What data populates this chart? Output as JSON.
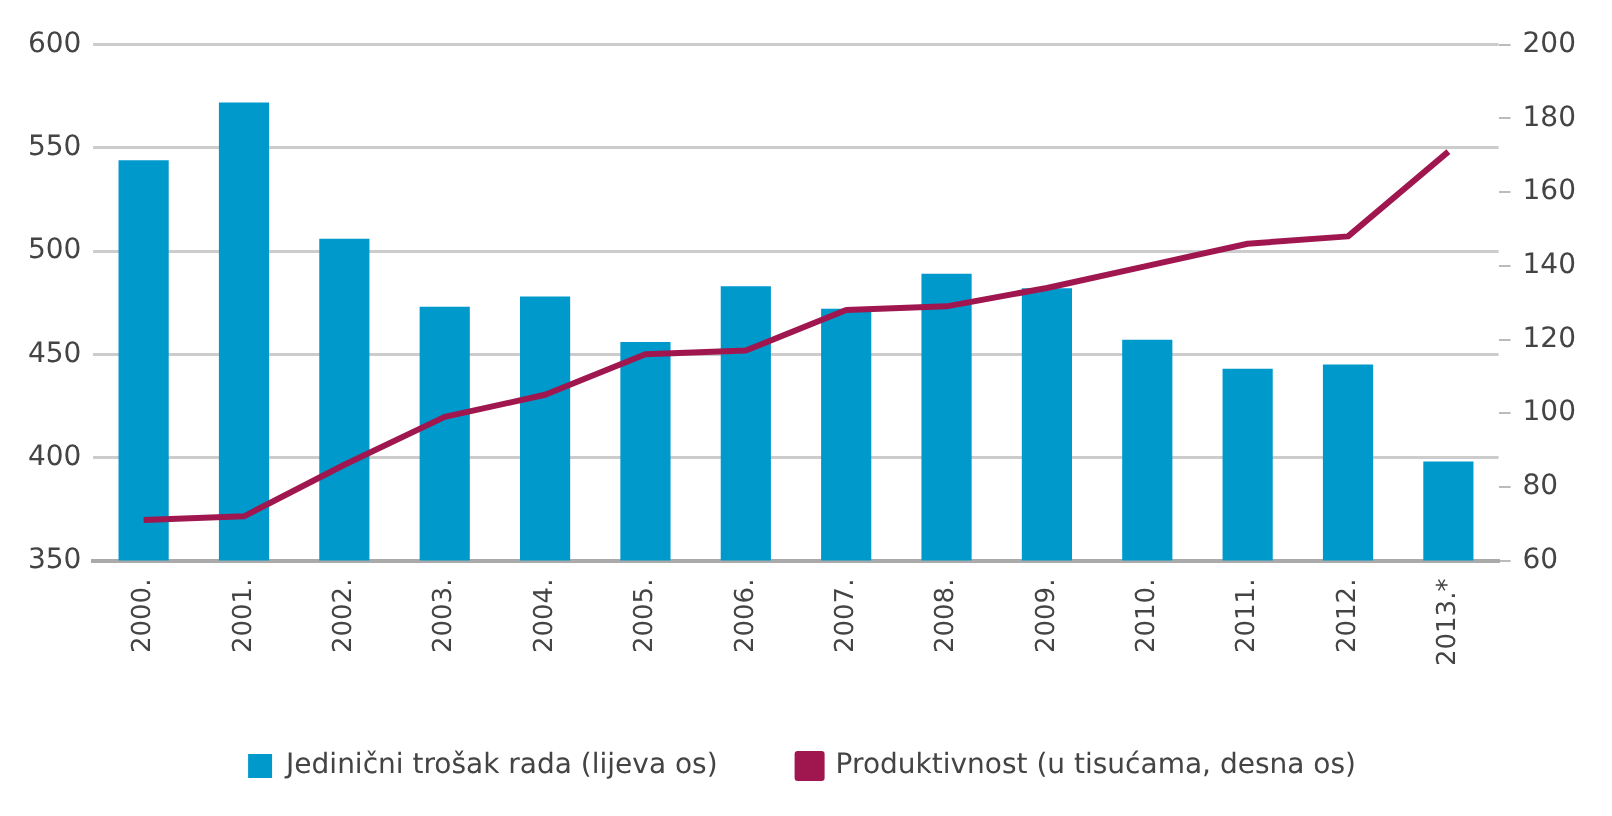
{
  "chart_data": {
    "type": "bar",
    "categories": [
      "2000.",
      "2001.",
      "2002.",
      "2003.",
      "2004.",
      "2005.",
      "2006.",
      "2007.",
      "2008.",
      "2009.",
      "2010.",
      "2011.",
      "2012.",
      "2013.*"
    ],
    "series": [
      {
        "name": "Jedinični trošak rada (lijeva os)",
        "color": "#0099cc",
        "values": [
          544,
          572,
          506,
          473,
          478,
          456,
          483,
          472,
          489,
          482,
          457,
          443,
          445,
          398
        ]
      },
      {
        "name": "Produktivnost (u tisućama, desna os)",
        "type": "line",
        "axis": "y2",
        "color": "#a0174f",
        "values": [
          71,
          72,
          86,
          99,
          105,
          116,
          117,
          128,
          129,
          134,
          140,
          146,
          148,
          171
        ]
      }
    ],
    "ylim": [
      350,
      600
    ],
    "yticks": [
      350,
      400,
      450,
      500,
      550,
      600
    ],
    "y2lim": [
      60,
      200
    ],
    "y2ticks": [
      60,
      80,
      100,
      120,
      140,
      160,
      180,
      200
    ],
    "grid": "y",
    "legend": "bottom",
    "marker": "none"
  }
}
